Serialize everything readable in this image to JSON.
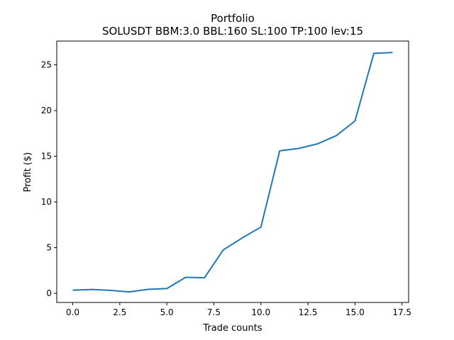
{
  "chart_data": {
    "type": "line",
    "title": "Portfolio",
    "subtitle": "SOLUSDT BBM:3.0 BBL:160 SL:100 TP:100 lev:15",
    "xlabel": "Trade counts",
    "ylabel": "Profit ($)",
    "xlim": [
      -0.85,
      17.85
    ],
    "ylim": [
      -1.0,
      27.6
    ],
    "xticks": [
      0.0,
      2.5,
      5.0,
      7.5,
      10.0,
      12.5,
      15.0,
      17.5
    ],
    "xtick_labels": [
      "0.0",
      "2.5",
      "5.0",
      "7.5",
      "10.0",
      "12.5",
      "15.0",
      "17.5"
    ],
    "yticks": [
      0,
      5,
      10,
      15,
      20,
      25
    ],
    "ytick_labels": [
      "0",
      "5",
      "10",
      "15",
      "20",
      "25"
    ],
    "grid": false,
    "legend": "none",
    "series": [
      {
        "color": "#1f77b4",
        "x": [
          0,
          1,
          2,
          3,
          4,
          5,
          6,
          7,
          8,
          9,
          10,
          11,
          12,
          13,
          14,
          15,
          16,
          17
        ],
        "y": [
          0.35,
          0.42,
          0.33,
          0.15,
          0.43,
          0.52,
          1.75,
          1.7,
          4.75,
          6.05,
          7.25,
          15.6,
          15.85,
          16.35,
          17.25,
          18.85,
          26.25,
          26.35
        ]
      }
    ]
  }
}
